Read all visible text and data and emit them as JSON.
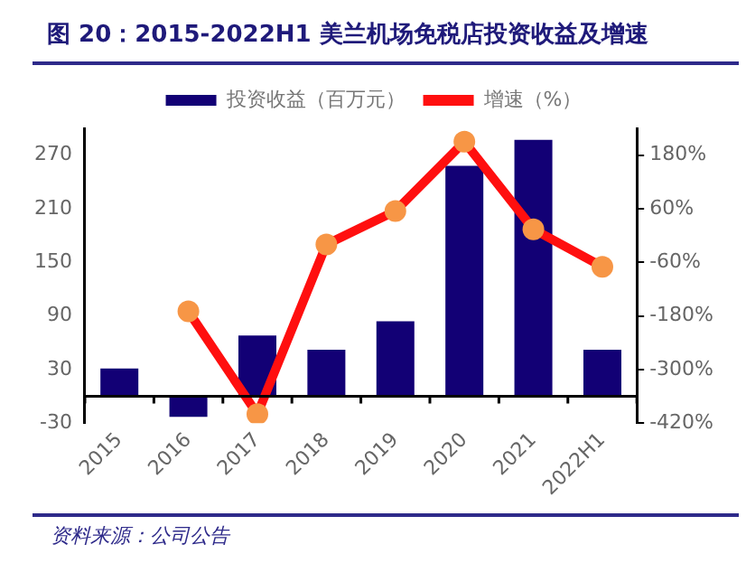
{
  "chart_data": {
    "type": "bar",
    "title": "图 20：2015-2022H1 美兰机场免税店投资收益及增速",
    "categories": [
      "2015",
      "2016",
      "2017",
      "2018",
      "2019",
      "2020",
      "2021",
      "2022H1"
    ],
    "series": [
      {
        "name": "投资收益（百万元）",
        "color": "#120075",
        "values": [
          31,
          -23,
          68,
          52,
          84,
          258,
          287,
          52
        ]
      },
      {
        "name": "增速（%）",
        "type": "line",
        "axis": "y2",
        "color": "#ff0f0f",
        "marker": "circle",
        "values": [
          null,
          -170,
          -400,
          -20,
          55,
          210,
          14,
          -70
        ]
      }
    ],
    "ylim": [
      -30,
      300
    ],
    "yticks": [
      -30,
      30,
      90,
      150,
      210,
      270
    ],
    "y2lim": [
      -420,
      240
    ],
    "y2ticks": [
      {
        "value": -420,
        "label": "-420%"
      },
      {
        "value": -300,
        "label": "-300%"
      },
      {
        "value": -180,
        "label": "-180%"
      },
      {
        "value": -60,
        "label": "-60%"
      },
      {
        "value": 60,
        "label": "60%"
      },
      {
        "value": 180,
        "label": "180%"
      }
    ],
    "grid": false,
    "legend": "top",
    "annotations": [
      "资料来源：公司公告"
    ]
  }
}
